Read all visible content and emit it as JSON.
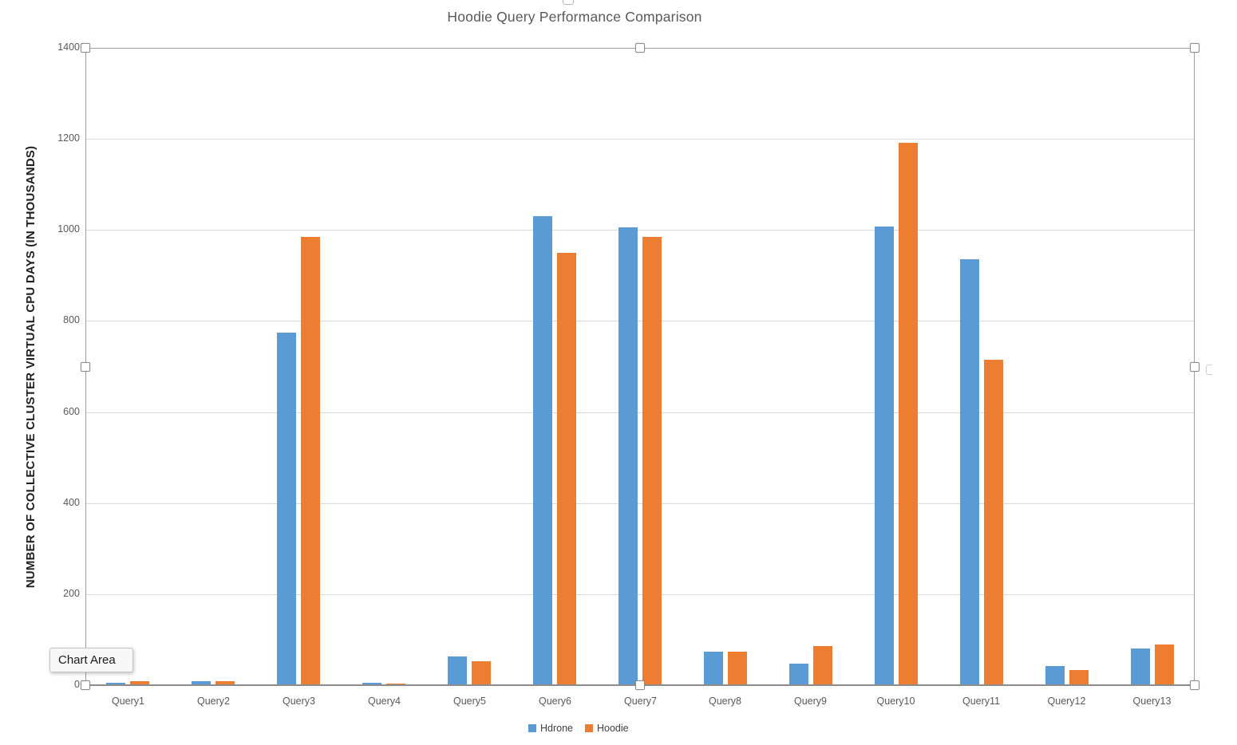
{
  "chart_data": {
    "type": "bar",
    "title": "Hoodie Query Performance Comparison",
    "ylabel": "NUMBER OF COLLECTIVE CLUSTER VIRTUAL CPU DAYS (IN THOUSANDS)",
    "xlabel": "",
    "categories": [
      "Query1",
      "Query2",
      "Query3",
      "Query4",
      "Query5",
      "Query6",
      "Query7",
      "Query8",
      "Query9",
      "Query10",
      "Query11",
      "Query12",
      "Query13"
    ],
    "series": [
      {
        "name": "Hdrone",
        "color": "#5B9BD5",
        "values": [
          5,
          9,
          775,
          5,
          63,
          1030,
          1005,
          73,
          48,
          1007,
          935,
          42,
          80
        ]
      },
      {
        "name": "Hoodie",
        "color": "#ED7D31",
        "values": [
          9,
          9,
          985,
          4,
          52,
          950,
          985,
          73,
          85,
          1192,
          715,
          33,
          90
        ]
      }
    ],
    "ylim": [
      0,
      1400
    ],
    "yticks": [
      0,
      200,
      400,
      600,
      800,
      1000,
      1200,
      1400
    ],
    "grid": true,
    "legend_position": "bottom-center"
  },
  "selection": {
    "tooltip_label": "Chart Area"
  },
  "colors": {
    "series_blue": "#5B9BD5",
    "series_orange": "#ED7D31",
    "gridline": "#D9D9D9",
    "axis_line": "#8C8C8C",
    "title_text": "#595959",
    "tick_text": "#595959",
    "axis_title_text": "#1F1F1F",
    "tooltip_bg": "#F7F7F7"
  }
}
